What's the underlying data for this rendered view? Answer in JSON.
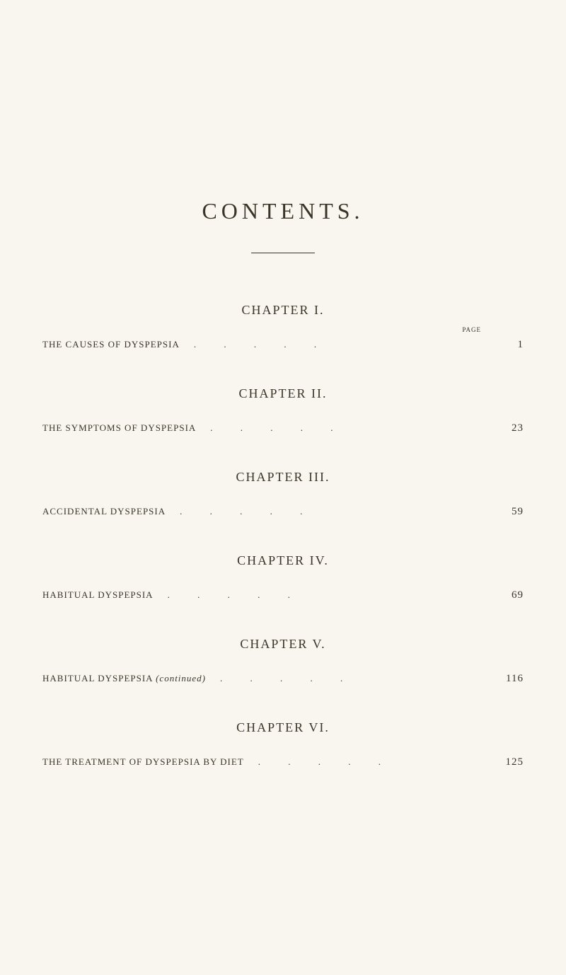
{
  "main_title": "CONTENTS.",
  "page_label": "PAGE",
  "chapters": [
    {
      "heading": "CHAPTER I.",
      "entry_title": "THE CAUSES OF DYSPEPSIA",
      "entry_suffix": "",
      "page_number": "1",
      "margin_mark": ""
    },
    {
      "heading": "CHAPTER II.",
      "entry_title": "THE SYMPTOMS OF DYSPEPSIA",
      "entry_suffix": "",
      "page_number": "23",
      "margin_mark": ""
    },
    {
      "heading": "CHAPTER III.",
      "entry_title": "ACCIDENTAL DYSPEPSIA",
      "entry_suffix": "",
      "page_number": "59",
      "margin_mark": ""
    },
    {
      "heading": "CHAPTER IV.",
      "entry_title": "HABITUAL DYSPEPSIA",
      "entry_suffix": "",
      "page_number": "69",
      "margin_mark": ""
    },
    {
      "heading": "CHAPTER V.",
      "entry_title": "HABITUAL DYSPEPSIA",
      "entry_suffix": "(continued)",
      "page_number": "116",
      "margin_mark": ""
    },
    {
      "heading": "CHAPTER VI.",
      "entry_title": "THE TREATMENT OF DYSPEPSIA BY DIET",
      "entry_suffix": "",
      "page_number": "125",
      "margin_mark": ""
    }
  ],
  "dots": ". . . . ."
}
